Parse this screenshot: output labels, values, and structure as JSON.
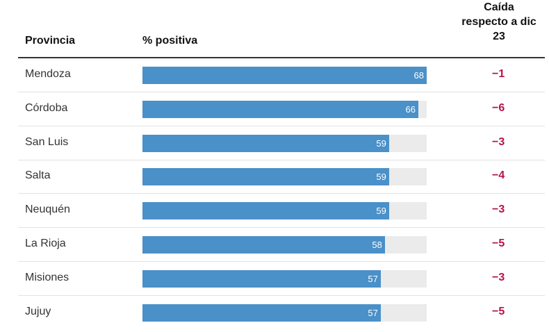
{
  "headers": {
    "provincia": "Provincia",
    "positiva": "% positiva",
    "caida": [
      "Caída",
      "respecto a dic",
      "23"
    ]
  },
  "colors": {
    "bar": "#4a90c9",
    "track": "#ebebeb",
    "drop": "#b5124a"
  },
  "chart_data": {
    "type": "bar",
    "orientation": "horizontal",
    "xlim": [
      0,
      100
    ],
    "categories": [
      "Mendoza",
      "Córdoba",
      "San Luis",
      "Salta",
      "Neuquén",
      "La Rioja",
      "Misiones",
      "Jujuy"
    ],
    "series": [
      {
        "name": "% positiva",
        "values": [
          68,
          66,
          59,
          59,
          59,
          58,
          57,
          57
        ]
      }
    ],
    "caida": [
      "−1",
      "−6",
      "−3",
      "−4",
      "−3",
      "−5",
      "−3",
      "−5"
    ]
  }
}
